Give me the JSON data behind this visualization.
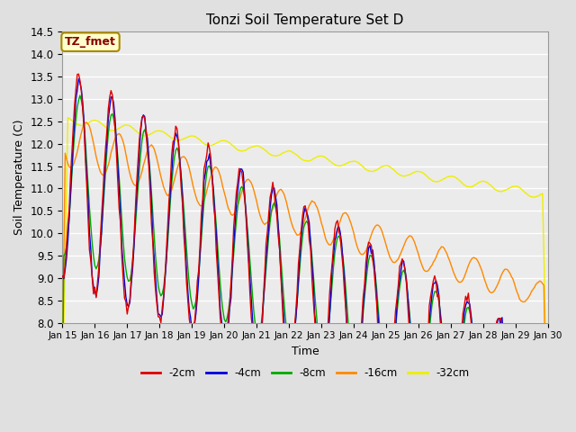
{
  "title": "Tonzi Soil Temperature Set D",
  "xlabel": "Time",
  "ylabel": "Soil Temperature (C)",
  "ylim": [
    8.0,
    14.5
  ],
  "xlim": [
    0,
    360
  ],
  "annotation_text": "TZ_fmet",
  "annotation_bg": "#ffffcc",
  "annotation_border": "#aa8800",
  "annotation_fg": "#880000",
  "series_labels": [
    "-2cm",
    "-4cm",
    "-8cm",
    "-16cm",
    "-32cm"
  ],
  "series_colors": [
    "#dd0000",
    "#0000dd",
    "#00aa00",
    "#ff8800",
    "#eeee00"
  ],
  "xtick_labels": [
    "Jan 15",
    "Jan 16",
    "Jan 17",
    "Jan 18",
    "Jan 19",
    "Jan 20",
    "Jan 21",
    "Jan 22",
    "Jan 23",
    "Jan 24",
    "Jan 25",
    "Jan 26",
    "Jan 27",
    "Jan 28",
    "Jan 29",
    "Jan 30"
  ],
  "ytick_vals": [
    8.0,
    8.5,
    9.0,
    9.5,
    10.0,
    10.5,
    11.0,
    11.5,
    12.0,
    12.5,
    13.0,
    13.5,
    14.0,
    14.5
  ],
  "background_color": "#e0e0e0",
  "plot_bg": "#ebebeb",
  "grid_color": "#ffffff",
  "lw": 1.0
}
